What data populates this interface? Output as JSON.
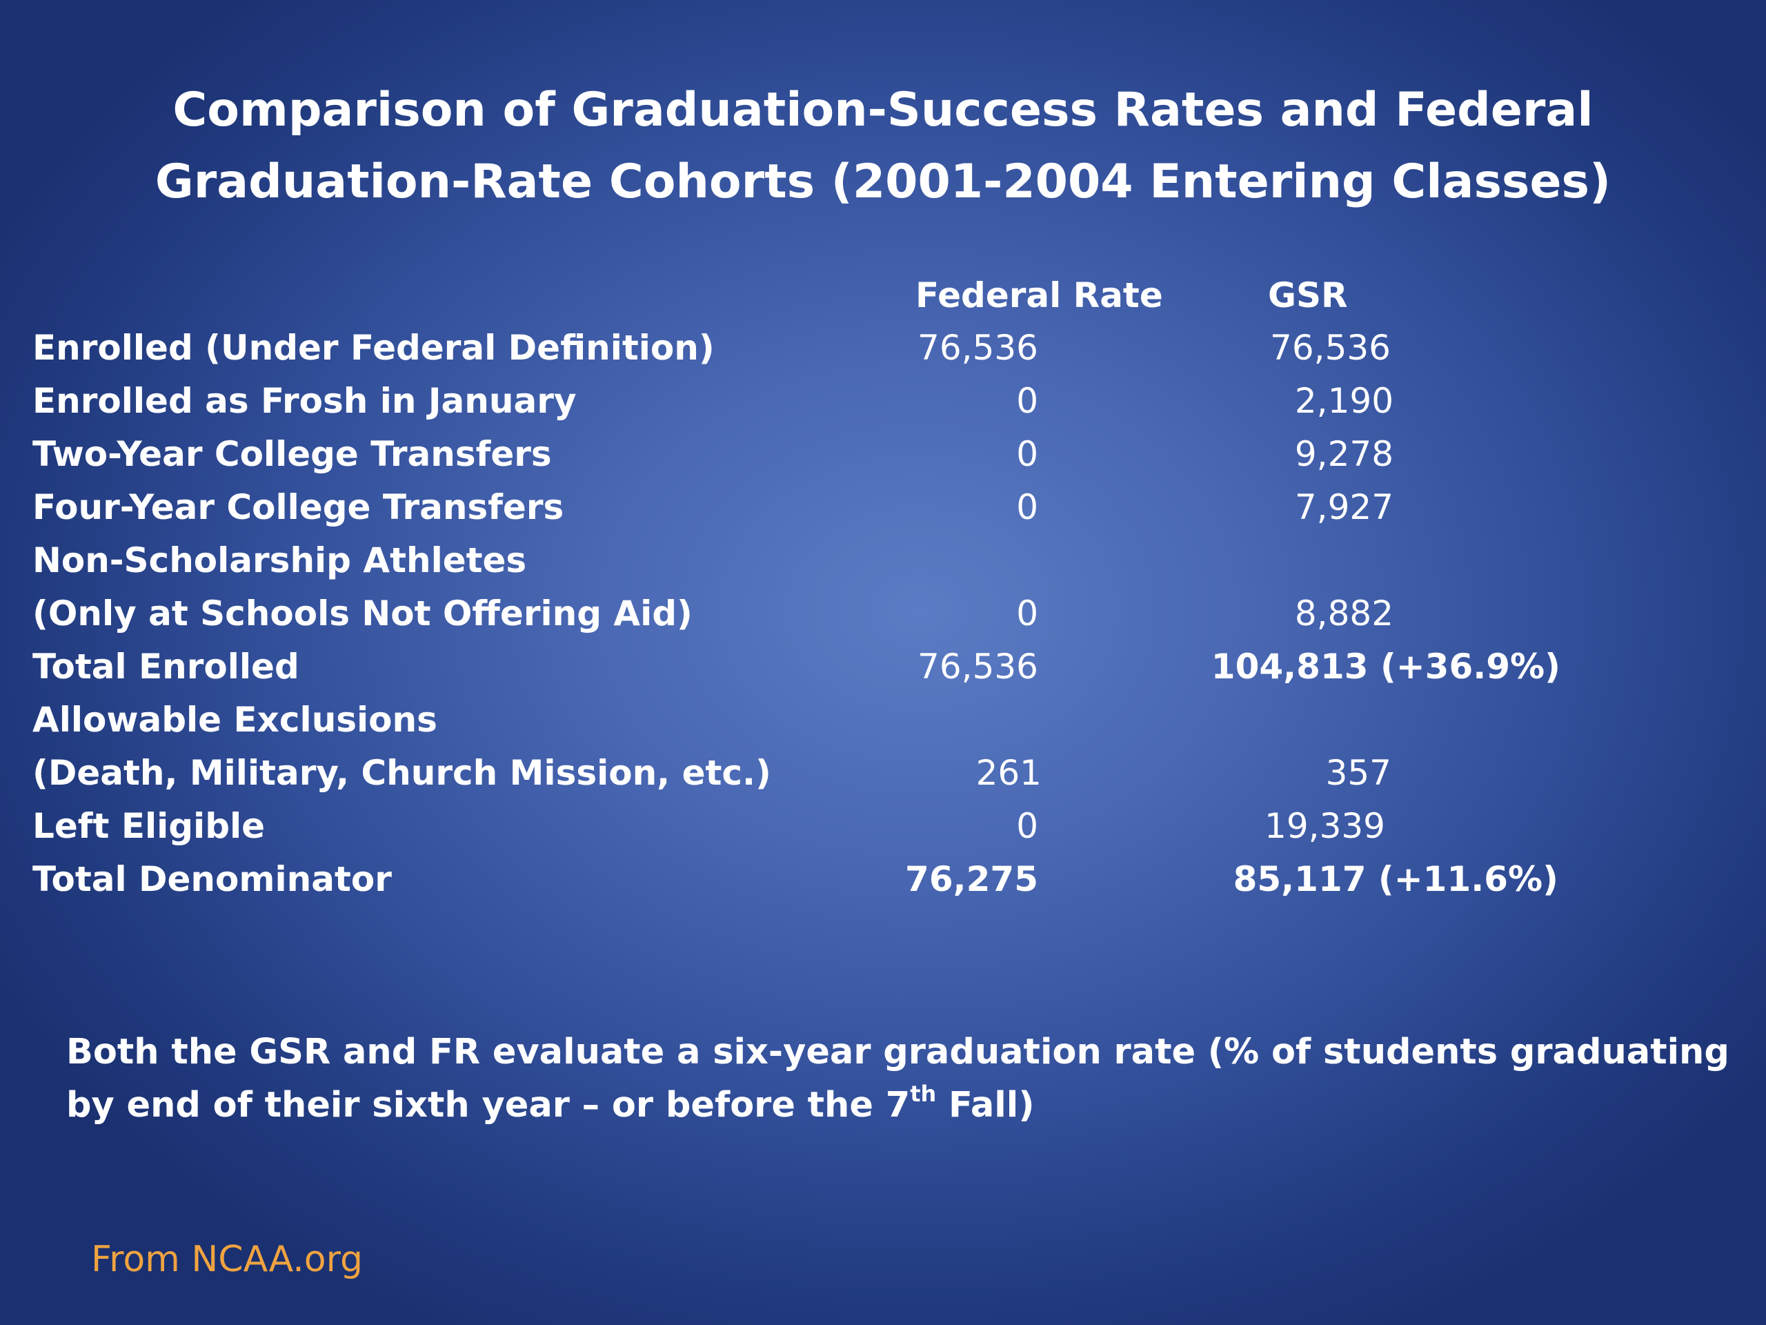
{
  "title": {
    "line1": "Comparison of Graduation-Success Rates and Federal",
    "line2": "Graduation-Rate Cohorts (2001-2004 Entering Classes)"
  },
  "table": {
    "headers": {
      "federal": "Federal Rate",
      "gsr": "GSR"
    },
    "rows": [
      {
        "label": "Enrolled (Under Federal Definition)",
        "federal": "76,536",
        "gsr": "76,536"
      },
      {
        "label": "Enrolled as Frosh in January",
        "federal": "0",
        "gsr": "2,190"
      },
      {
        "label": "Two-Year College Transfers",
        "federal": "0",
        "gsr": "9,278"
      },
      {
        "label": "Four-Year College Transfers",
        "federal": "0",
        "gsr": "7,927"
      },
      {
        "label": "Non-Scholarship Athletes",
        "federal": "",
        "gsr": ""
      },
      {
        "label": "(Only at Schools Not Offering Aid)",
        "federal": "0",
        "gsr": "8,882"
      },
      {
        "label": "Total Enrolled",
        "federal": "76,536",
        "gsr": "104,813 (+36.9%)"
      },
      {
        "label": "Allowable Exclusions",
        "federal": "",
        "gsr": ""
      },
      {
        "label": "(Death, Military, Church Mission, etc.)",
        "federal": "261",
        "gsr": "357"
      },
      {
        "label": "Left Eligible",
        "federal": "0",
        "gsr": "19,339"
      },
      {
        "label": "Total Denominator",
        "federal": "76,275",
        "gsr": "85,117 (+11.6%)"
      }
    ]
  },
  "note": {
    "line1": "Both the GSR and FR evaluate  a six-year graduation rate (% of students graduating",
    "line2_before": "by end of their sixth year – or before the 7",
    "line2_sup": "th",
    "line2_after": " Fall)"
  },
  "source": "From NCAA.org",
  "colors": {
    "background_center": "#5b7cc4",
    "background_edge": "#1a3070",
    "text": "#ffffff",
    "source_text": "#f0a341"
  }
}
